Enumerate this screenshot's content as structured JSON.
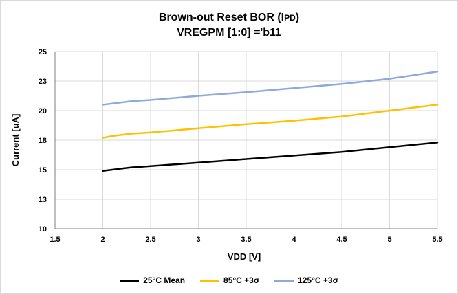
{
  "chart_data": {
    "type": "line",
    "title_line1_main": "Brown-out Reset BOR (I",
    "title_line1_sub": "PD",
    "title_line1_end": ")",
    "title_line2": "VREGPM [1:0] ='b11",
    "xlabel": "VDD [V]",
    "ylabel": "Current [uA]",
    "xlim": [
      1.5,
      5.5
    ],
    "ylim": [
      10,
      25
    ],
    "x_ticks": [
      "1.5",
      "2",
      "2.5",
      "3",
      "3.5",
      "4",
      "4.5",
      "5",
      "5.5"
    ],
    "y_ticks": [
      "10",
      "13",
      "15",
      "18",
      "20",
      "23",
      "25"
    ],
    "y_tick_values": [
      10,
      12.5,
      15,
      17.5,
      20,
      22.5,
      25
    ],
    "grid": true,
    "legend_position": "bottom",
    "x": [
      2.0,
      2.1,
      2.2,
      2.3,
      2.4,
      2.5,
      3.0,
      3.5,
      4.0,
      4.5,
      5.0,
      5.5
    ],
    "series": [
      {
        "name": "25°C Mean",
        "color": "#000000",
        "values": [
          14.9,
          15.0,
          15.1,
          15.2,
          15.25,
          15.3,
          15.6,
          15.9,
          16.2,
          16.5,
          16.9,
          17.3
        ]
      },
      {
        "name": "85°C +3σ",
        "color": "#ffc000",
        "values": [
          17.7,
          17.85,
          17.95,
          18.05,
          18.1,
          18.15,
          18.5,
          18.85,
          19.15,
          19.5,
          20.0,
          20.5
        ]
      },
      {
        "name": "125°C +3σ",
        "color": "#8ea9db",
        "values": [
          20.5,
          20.6,
          20.7,
          20.8,
          20.85,
          20.9,
          21.25,
          21.55,
          21.9,
          22.25,
          22.7,
          23.3
        ]
      }
    ]
  }
}
